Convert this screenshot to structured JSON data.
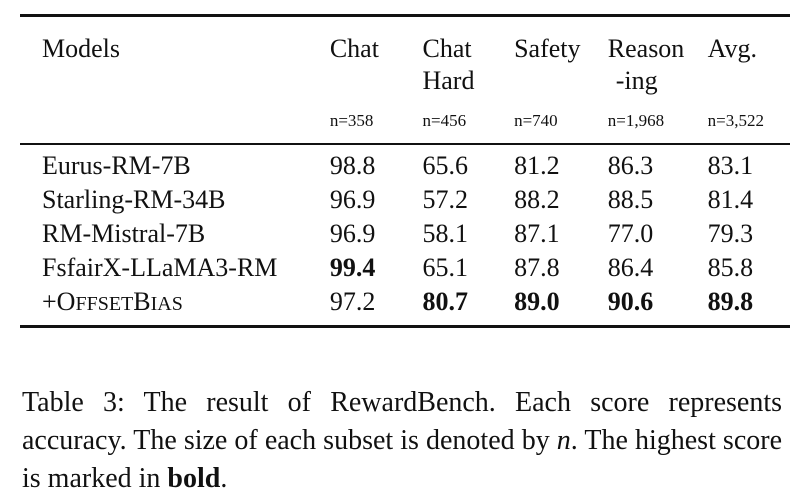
{
  "table": {
    "headers": {
      "models": "Models",
      "chat": "Chat",
      "chat_hard_line1": "Chat",
      "chat_hard_line2": "Hard",
      "safety": "Safety",
      "reasoning_line1": "Reason",
      "reasoning_line2": "-ing",
      "avg": "Avg."
    },
    "subset_sizes": {
      "chat": "n=358",
      "chat_hard": "n=456",
      "safety": "n=740",
      "reasoning": "n=1,968",
      "avg": "n=3,522"
    },
    "rows": [
      {
        "model": "Eurus-RM-7B",
        "chat": "98.8",
        "chat_hard": "65.6",
        "safety": "81.2",
        "reasoning": "86.3",
        "avg": "83.1"
      },
      {
        "model": "Starling-RM-34B",
        "chat": "96.9",
        "chat_hard": "57.2",
        "safety": "88.2",
        "reasoning": "88.5",
        "avg": "81.4"
      },
      {
        "model": "RM-Mistral-7B",
        "chat": "96.9",
        "chat_hard": "58.1",
        "safety": "87.1",
        "reasoning": "77.0",
        "avg": "79.3"
      },
      {
        "model": "FsfairX-LLaMA3-RM",
        "chat": "99.4",
        "chat_hard": "65.1",
        "safety": "87.8",
        "reasoning": "86.4",
        "avg": "85.8"
      },
      {
        "model": "+OffsetBias",
        "chat": "97.2",
        "chat_hard": "80.7",
        "safety": "89.0",
        "reasoning": "90.6",
        "avg": "89.8"
      }
    ],
    "offsetbias_parts": {
      "plus": "+",
      "o": "O",
      "ffset": "FFSET",
      "b": "B",
      "ias": "IAS"
    }
  },
  "caption": {
    "part1": "Table 3: The result of RewardBench. Each score represents accuracy. The size of each subset is denoted by ",
    "n_symbol": "n",
    "part2": ". The highest score is marked in ",
    "bold_word": "bold",
    "part3": "."
  }
}
